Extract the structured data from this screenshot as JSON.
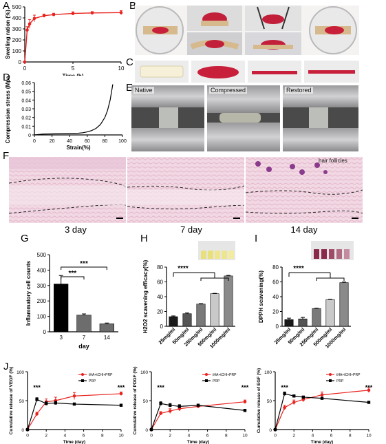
{
  "panels": {
    "A": "A",
    "B": "B",
    "C": "C",
    "D": "D",
    "E": "E",
    "F": "F",
    "G": "G",
    "H": "H",
    "I": "I",
    "J": "J"
  },
  "E_labels": {
    "native": "Native",
    "compressed": "Compressed",
    "restored": "Restored"
  },
  "F_labels": {
    "d3": "3 day",
    "d7": "7 day",
    "d14": "14 day",
    "hair": "hair follicles"
  },
  "chart_data": [
    {
      "id": "A",
      "type": "line",
      "xlabel": "Time (h)",
      "ylabel": "Swelling ration (%)",
      "xticks": [
        0,
        5,
        10
      ],
      "yticks": [
        0,
        100,
        200,
        300,
        400,
        500
      ],
      "xlim": [
        0,
        10
      ],
      "ylim": [
        0,
        500
      ],
      "series": [
        {
          "color": "#e8231f",
          "x": [
            0,
            0.25,
            0.5,
            1,
            2,
            3,
            5,
            7,
            10
          ],
          "y": [
            0,
            290,
            345,
            395,
            420,
            430,
            440,
            445,
            448
          ],
          "err": [
            0,
            30,
            40,
            30,
            15,
            12,
            15,
            12,
            18
          ]
        }
      ]
    },
    {
      "id": "D",
      "type": "line",
      "xlabel": "Strain(%)",
      "ylabel": "Compression stress (Mpa)",
      "xticks": [
        0,
        20,
        40,
        60,
        80,
        100
      ],
      "yticks": [
        0,
        0.01,
        0.02,
        0.03,
        0.04,
        0.05,
        0.06
      ],
      "xlim": [
        0,
        100
      ],
      "ylim": [
        0,
        0.06
      ],
      "series": [
        {
          "color": "#000000",
          "x": [
            0,
            10,
            20,
            30,
            40,
            50,
            55,
            60,
            65,
            70,
            75,
            80,
            83,
            86,
            89
          ],
          "y": [
            0,
            0.001,
            0.0012,
            0.0015,
            0.0018,
            0.002,
            0.0025,
            0.0035,
            0.005,
            0.0075,
            0.012,
            0.02,
            0.028,
            0.04,
            0.058
          ]
        }
      ]
    },
    {
      "id": "G",
      "type": "bar",
      "xlabel": "day",
      "ylabel": "Inflammatory cell counts",
      "categories": [
        "3",
        "7",
        "14"
      ],
      "values": [
        310,
        108,
        52
      ],
      "err": [
        55,
        8,
        5
      ],
      "colors": [
        "#000000",
        "#6d6d6d",
        "#6d6d6d"
      ],
      "yticks": [
        0,
        100,
        200,
        300,
        400,
        500
      ],
      "ylim": [
        0,
        500
      ],
      "sig": [
        "***",
        "***"
      ]
    },
    {
      "id": "H",
      "type": "bar",
      "ylabel": "H2O2 scavening efficacy(%)",
      "categories": [
        "25mg/ml",
        "50mg/ml",
        "250mg/ml",
        "500mg/ml",
        "1000mg/ml"
      ],
      "values": [
        13,
        17,
        30,
        44,
        68
      ],
      "err": [
        1,
        1,
        0.6,
        0.5,
        0.8
      ],
      "colors": [
        "#1a1a1a",
        "#555555",
        "#7a7a7a",
        "#c9c9c9",
        "#8a8a8a"
      ],
      "yticks": [
        0,
        20,
        40,
        60,
        80
      ],
      "ylim": [
        0,
        80
      ],
      "sig": [
        "****"
      ]
    },
    {
      "id": "I",
      "type": "bar",
      "ylabel": "DPPH scavening(%)",
      "categories": [
        "25mg/ml",
        "50mg/ml",
        "250mg/ml",
        "500mg/ml",
        "1000mg/ml"
      ],
      "values": [
        9,
        10,
        24,
        36,
        59
      ],
      "err": [
        2,
        2,
        0.5,
        0.5,
        0.8
      ],
      "colors": [
        "#1a1a1a",
        "#555555",
        "#7a7a7a",
        "#c9c9c9",
        "#8a8a8a"
      ],
      "yticks": [
        0,
        20,
        40,
        60,
        80
      ],
      "ylim": [
        0,
        80
      ],
      "sig": [
        "****"
      ]
    },
    {
      "id": "J1",
      "type": "line",
      "xlabel": "Time (day)",
      "ylabel": "Cumulative release of VEGF (%)",
      "xticks": [
        0,
        2,
        4,
        6,
        8,
        10
      ],
      "yticks": [
        0,
        50,
        100
      ],
      "xlim": [
        0,
        10
      ],
      "ylim": [
        0,
        100
      ],
      "sig": [
        "***",
        "***"
      ],
      "series": [
        {
          "name": "tHA+tCHI+PRP",
          "color": "#e8231f",
          "x": [
            0,
            1,
            2,
            3,
            5,
            10
          ],
          "y": [
            0,
            27,
            48,
            50,
            58,
            62
          ],
          "err": [
            0,
            3,
            5,
            6,
            6,
            3
          ]
        },
        {
          "name": "PRP",
          "color": "#000000",
          "x": [
            0,
            1,
            2,
            3,
            5,
            10
          ],
          "y": [
            0,
            52,
            45,
            46,
            44,
            42
          ],
          "err": [
            0,
            3,
            3,
            3,
            2,
            2
          ]
        }
      ]
    },
    {
      "id": "J2",
      "type": "line",
      "xlabel": "Time (day)",
      "ylabel": "Cumulative release of PDGF (%)",
      "xticks": [
        0,
        2,
        4,
        6,
        8,
        10
      ],
      "yticks": [
        0,
        50,
        100
      ],
      "xlim": [
        0,
        10
      ],
      "ylim": [
        0,
        100
      ],
      "sig": [
        "***",
        "***"
      ],
      "series": [
        {
          "name": "tHA+tCHI+PRP",
          "color": "#e8231f",
          "x": [
            0,
            1,
            2,
            3,
            5,
            10
          ],
          "y": [
            0,
            28,
            32,
            36,
            40,
            48
          ],
          "err": [
            0,
            3,
            4,
            4,
            3,
            3
          ]
        },
        {
          "name": "PRP",
          "color": "#000000",
          "x": [
            0,
            1,
            2,
            3,
            5,
            10
          ],
          "y": [
            0,
            45,
            42,
            40,
            42,
            33
          ],
          "err": [
            0,
            3,
            3,
            3,
            2,
            2
          ]
        }
      ]
    },
    {
      "id": "J3",
      "type": "line",
      "xlabel": "Time (day)",
      "ylabel": "Cumulative release of EGF (%)",
      "xticks": [
        0,
        2,
        4,
        6,
        8,
        10
      ],
      "yticks": [
        0,
        50,
        100
      ],
      "xlim": [
        0,
        10
      ],
      "ylim": [
        0,
        100
      ],
      "sig": [
        "***",
        "***"
      ],
      "series": [
        {
          "name": "tHA+tCHI+PRP",
          "color": "#e8231f",
          "x": [
            0,
            1,
            2,
            3,
            5,
            10
          ],
          "y": [
            0,
            38,
            47,
            52,
            60,
            68
          ],
          "err": [
            0,
            4,
            4,
            4,
            5,
            4
          ]
        },
        {
          "name": "PRP",
          "color": "#000000",
          "x": [
            0,
            1,
            2,
            3,
            5,
            10
          ],
          "y": [
            0,
            62,
            58,
            56,
            54,
            47
          ],
          "err": [
            0,
            3,
            2,
            2,
            2,
            2
          ]
        }
      ]
    }
  ]
}
